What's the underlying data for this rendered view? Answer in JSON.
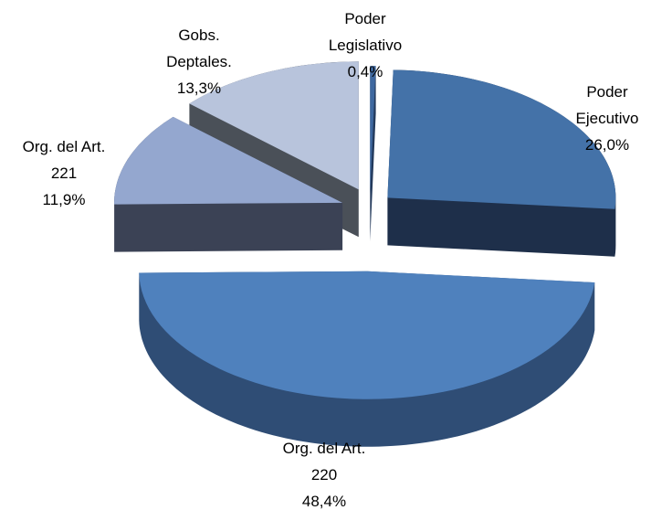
{
  "chart_data": {
    "type": "pie",
    "categories": [
      [
        "Poder",
        "Legislativo"
      ],
      [
        "Poder",
        "Ejecutivo"
      ],
      [
        "Org. del Art.",
        "220"
      ],
      [
        "Org. del Art.",
        "221"
      ],
      [
        "Gobs.",
        "Deptales."
      ]
    ],
    "values": [
      0.4,
      26.0,
      48.4,
      11.9,
      13.3
    ],
    "value_labels": [
      "0,4%",
      "26,0%",
      "48,4%",
      "11,9%",
      "13,3%"
    ],
    "colors": [
      "#3e68a0",
      "#4472a8",
      "#4f81bd",
      "#94a7cf",
      "#b8c4dc"
    ],
    "side_colors": [
      "#233a5c",
      "#1e2f4a",
      "#2f4d75",
      "#3b4255",
      "#4a5058"
    ]
  }
}
